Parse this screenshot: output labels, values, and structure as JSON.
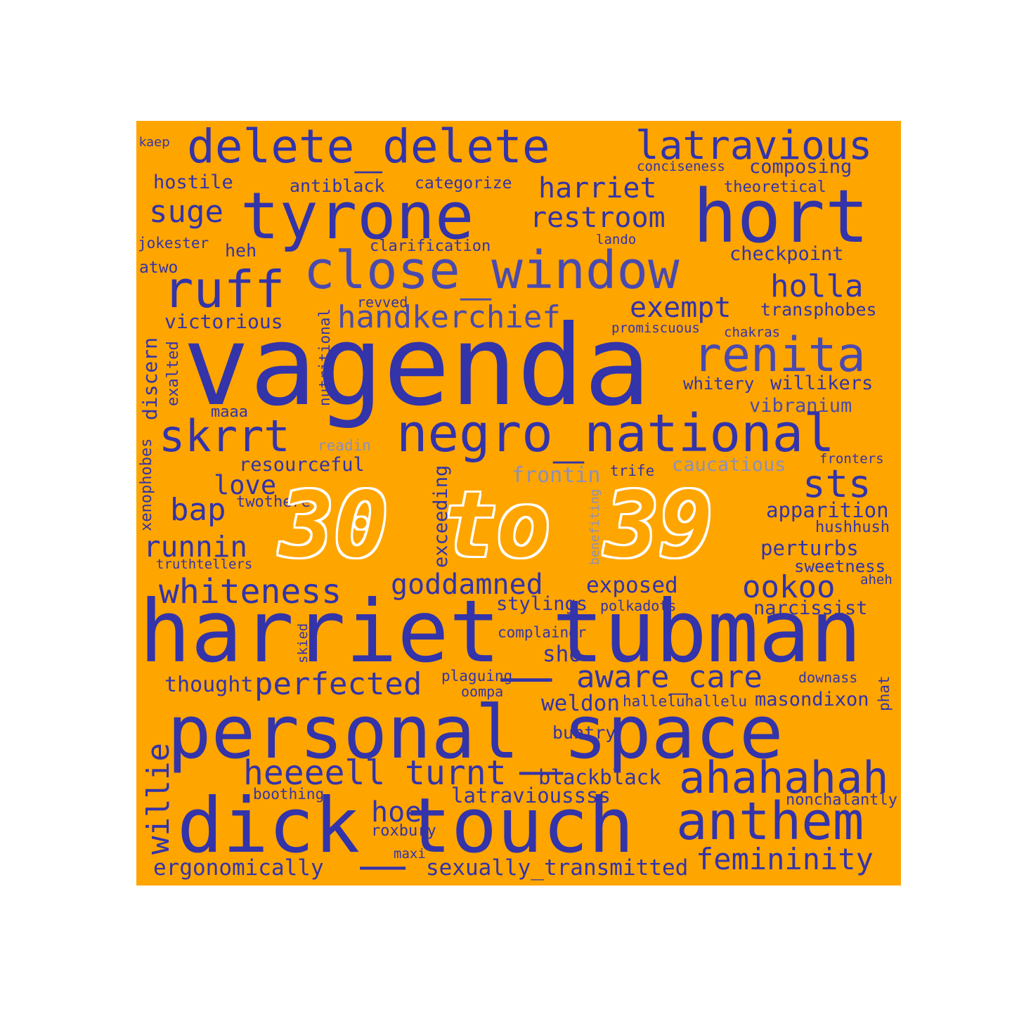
{
  "colors": {
    "background": "#FFA500",
    "word_primary": "#3333AA",
    "word_secondary": "#4A4AAE",
    "word_faint": "#8C8FB8",
    "overlay_outline": "#FFFFFF"
  },
  "overlay_title": "30 to 39",
  "words": {
    "kaep": "kaep",
    "delete_delete": "delete_delete",
    "latravious": "latravious",
    "conciseness": "conciseness",
    "composing": "composing",
    "hostile": "hostile",
    "antiblack": "antiblack",
    "categorize": "categorize",
    "harriet": "harriet",
    "theoretical": "theoretical",
    "suge": "suge",
    "tyrone": "tyrone",
    "hort": "hort",
    "restroom": "restroom",
    "jokester": "jokester",
    "lando": "lando",
    "heh": "heh",
    "clarification": "clarification",
    "checkpoint": "checkpoint",
    "atwo": "atwo",
    "close_window": "close_window",
    "ruff": "ruff",
    "holla": "holla",
    "revved": "revved",
    "exempt": "exempt",
    "transphobes": "transphobes",
    "handkerchief": "handkerchief",
    "victorious": "victorious",
    "promiscuous": "promiscuous",
    "chakras": "chakras",
    "nutritional": "nutritional",
    "vagenda": "vagenda",
    "renita": "renita",
    "discern": "discern",
    "exalted": "exalted",
    "whitery": "whitery",
    "willikers": "willikers",
    "maaa": "maaa",
    "vibranium": "vibranium",
    "skrrt": "skrrt",
    "negro_national": "negro_national",
    "xenophobes": "xenophobes",
    "readin": "readin",
    "resourceful": "resourceful",
    "caucatious": "caucatious",
    "fronters": "fronters",
    "frontin": "frontin",
    "trife": "trife",
    "love": "love",
    "sts": "sts",
    "benefiting": "benefiting",
    "bap": "bap",
    "twothere": "twothere",
    "apparition": "apparition",
    "hushhush": "hushhush",
    "runnin": "runnin",
    "exceeding": "exceeding",
    "perturbs": "perturbs",
    "truthtellers": "truthtellers",
    "sweetness": "sweetness",
    "aheh": "aheh",
    "whiteness": "whiteness",
    "goddamned": "goddamned",
    "exposed": "exposed",
    "ookoo": "ookoo",
    "stylings": "stylings",
    "polkadots": "polkadots",
    "narcissist": "narcissist",
    "harriet_tubman": "harriet_tubman",
    "complainer": "complainer",
    "skied": "skied",
    "sho": "sho",
    "thought": "thought",
    "perfected": "perfected",
    "plaguing": "plaguing",
    "aware_care": "aware_care",
    "downass": "downass",
    "phat": "phat",
    "oompa": "oompa",
    "weldon": "weldon",
    "halleluhallelu": "halleluhallelu",
    "masondixon": "masondixon",
    "personal_space": "personal_space",
    "willie": "willie",
    "buntry": "buntry",
    "heeeell": "heeeell",
    "turnt": "turnt",
    "blackblack": "blackblack",
    "ahahahah": "ahahahah",
    "boothing": "boothing",
    "latravioussss": "latravioussss",
    "nonchalantly": "nonchalantly",
    "hoe": "hoe",
    "dick_touch": "dick_touch",
    "anthem": "anthem",
    "roxbury": "roxbury",
    "maxi": "maxi",
    "femininity": "femininity",
    "ergonomically": "ergonomically",
    "sexually_transmitted": "sexually_transmitted"
  }
}
